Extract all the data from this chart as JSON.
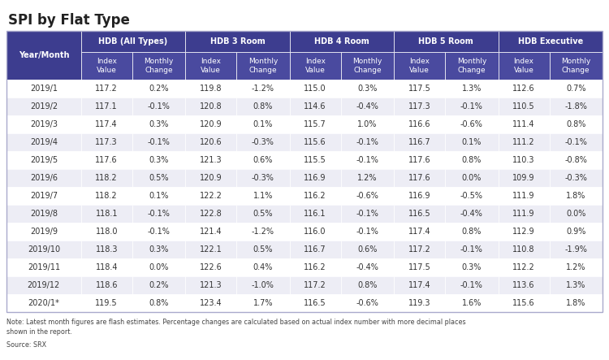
{
  "title": "SPI by Flat Type",
  "note": "Note: Latest month figures are flash estimates. Percentage changes are calculated based on actual index number with more decimal places\nshown in the report.",
  "source": "Source: SRX",
  "header_bg": "#3d3d8f",
  "header_text": "#ffffff",
  "subheader_bg": "#4a4a9f",
  "row_bg_odd": "#ffffff",
  "row_bg_even": "#ededf5",
  "last_row_bg": "#ffffff",
  "border_color": "#ccccdd",
  "col_groups": [
    "HDB (All Types)",
    "HDB 3 Room",
    "HDB 4 Room",
    "HDB 5 Room",
    "HDB Executive"
  ],
  "sub_cols": [
    "Index\nValue",
    "Monthly\nChange"
  ],
  "year_month_col": "Year/Month",
  "rows": [
    [
      "2019/1",
      "117.2",
      "0.2%",
      "119.8",
      "-1.2%",
      "115.0",
      "0.3%",
      "117.5",
      "1.3%",
      "112.6",
      "0.7%"
    ],
    [
      "2019/2",
      "117.1",
      "-0.1%",
      "120.8",
      "0.8%",
      "114.6",
      "-0.4%",
      "117.3",
      "-0.1%",
      "110.5",
      "-1.8%"
    ],
    [
      "2019/3",
      "117.4",
      "0.3%",
      "120.9",
      "0.1%",
      "115.7",
      "1.0%",
      "116.6",
      "-0.6%",
      "111.4",
      "0.8%"
    ],
    [
      "2019/4",
      "117.3",
      "-0.1%",
      "120.6",
      "-0.3%",
      "115.6",
      "-0.1%",
      "116.7",
      "0.1%",
      "111.2",
      "-0.1%"
    ],
    [
      "2019/5",
      "117.6",
      "0.3%",
      "121.3",
      "0.6%",
      "115.5",
      "-0.1%",
      "117.6",
      "0.8%",
      "110.3",
      "-0.8%"
    ],
    [
      "2019/6",
      "118.2",
      "0.5%",
      "120.9",
      "-0.3%",
      "116.9",
      "1.2%",
      "117.6",
      "0.0%",
      "109.9",
      "-0.3%"
    ],
    [
      "2019/7",
      "118.2",
      "0.1%",
      "122.2",
      "1.1%",
      "116.2",
      "-0.6%",
      "116.9",
      "-0.5%",
      "111.9",
      "1.8%"
    ],
    [
      "2019/8",
      "118.1",
      "-0.1%",
      "122.8",
      "0.5%",
      "116.1",
      "-0.1%",
      "116.5",
      "-0.4%",
      "111.9",
      "0.0%"
    ],
    [
      "2019/9",
      "118.0",
      "-0.1%",
      "121.4",
      "-1.2%",
      "116.0",
      "-0.1%",
      "117.4",
      "0.8%",
      "112.9",
      "0.9%"
    ],
    [
      "2019/10",
      "118.3",
      "0.3%",
      "122.1",
      "0.5%",
      "116.7",
      "0.6%",
      "117.2",
      "-0.1%",
      "110.8",
      "-1.9%"
    ],
    [
      "2019/11",
      "118.4",
      "0.0%",
      "122.6",
      "0.4%",
      "116.2",
      "-0.4%",
      "117.5",
      "0.3%",
      "112.2",
      "1.2%"
    ],
    [
      "2019/12",
      "118.6",
      "0.2%",
      "121.3",
      "-1.0%",
      "117.2",
      "0.8%",
      "117.4",
      "-0.1%",
      "113.6",
      "1.3%"
    ],
    [
      "2020/1*",
      "119.5",
      "0.8%",
      "123.4",
      "1.7%",
      "116.5",
      "-0.6%",
      "119.3",
      "1.6%",
      "115.6",
      "1.8%"
    ]
  ]
}
